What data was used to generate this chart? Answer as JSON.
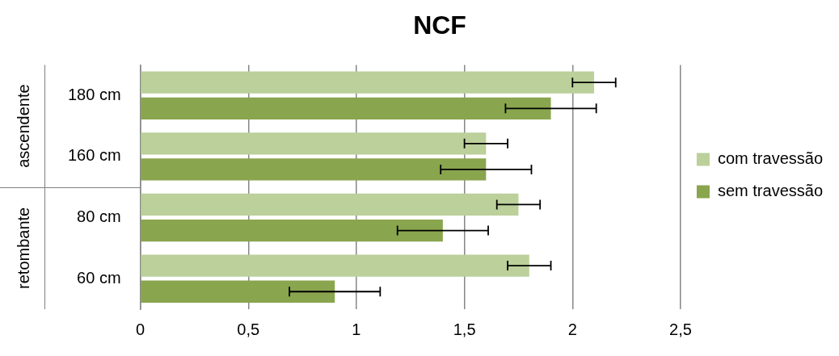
{
  "chart_data": {
    "type": "bar",
    "orientation": "horizontal",
    "title": "NCF",
    "categories": [
      "180 cm",
      "160 cm",
      "80 cm",
      "60 cm"
    ],
    "series": [
      {
        "name": "com travessão",
        "color": "#bbd09a",
        "values": [
          2.1,
          1.6,
          1.75,
          1.8
        ],
        "errors": [
          0.1,
          0.1,
          0.1,
          0.1
        ]
      },
      {
        "name": "sem travessão",
        "color": "#89a54e",
        "values": [
          1.9,
          1.6,
          1.4,
          0.9
        ],
        "errors": [
          0.21,
          0.21,
          0.21,
          0.21
        ]
      }
    ],
    "annotations": [
      "ascendente",
      "retombante"
    ],
    "xlim": [
      0,
      2.5
    ],
    "xticks": [
      {
        "value": 0,
        "label": "0"
      },
      {
        "value": 0.5,
        "label": "0,5"
      },
      {
        "value": 1,
        "label": "1"
      },
      {
        "value": 1.5,
        "label": "1,5"
      },
      {
        "value": 2,
        "label": "2"
      },
      {
        "value": 2.5,
        "label": "2,5"
      }
    ],
    "grid": "x",
    "legend": "right"
  }
}
